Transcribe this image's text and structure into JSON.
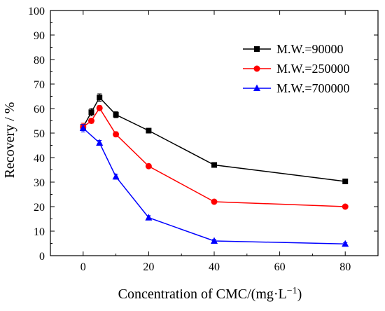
{
  "chart_data": {
    "type": "line",
    "title": "",
    "xlabel": "Concentration of CMC/(mg·L",
    "xlabel_superscript": "−1",
    "xlabel_suffix": ")",
    "ylabel": "Recovery / %",
    "xlim": [
      -10,
      90
    ],
    "ylim": [
      0,
      100
    ],
    "xticks": [
      0,
      20,
      40,
      60,
      80
    ],
    "yticks": [
      0,
      10,
      20,
      30,
      40,
      50,
      60,
      70,
      80,
      90,
      100
    ],
    "grid": false,
    "legend_position": "top-right",
    "error_bars": true,
    "series": [
      {
        "name": "M.W.=90000",
        "color": "#000000",
        "marker": "square",
        "x": [
          0,
          2.5,
          5,
          10,
          20,
          40,
          80
        ],
        "y": [
          52.5,
          58.5,
          64.5,
          57.5,
          51,
          37,
          30.3
        ],
        "err": [
          1.5,
          1.5,
          1.5,
          1.2,
          1,
          0.8,
          0.8
        ]
      },
      {
        "name": "M.W.=250000",
        "color": "#ff0000",
        "marker": "circle",
        "x": [
          0,
          2.5,
          5,
          10,
          20,
          40,
          80
        ],
        "y": [
          52.5,
          55,
          60.2,
          49.5,
          36.5,
          22,
          20
        ],
        "err": [
          1.5,
          1,
          1,
          1,
          0.8,
          0.8,
          0.6
        ]
      },
      {
        "name": "M.W.=700000",
        "color": "#0000ff",
        "marker": "triangle",
        "x": [
          0,
          5,
          10,
          20,
          40,
          80
        ],
        "y": [
          52,
          46,
          32.2,
          15.5,
          6,
          4.8
        ],
        "err": [
          1.5,
          1,
          1,
          0.8,
          0.6,
          0.5
        ]
      }
    ]
  }
}
